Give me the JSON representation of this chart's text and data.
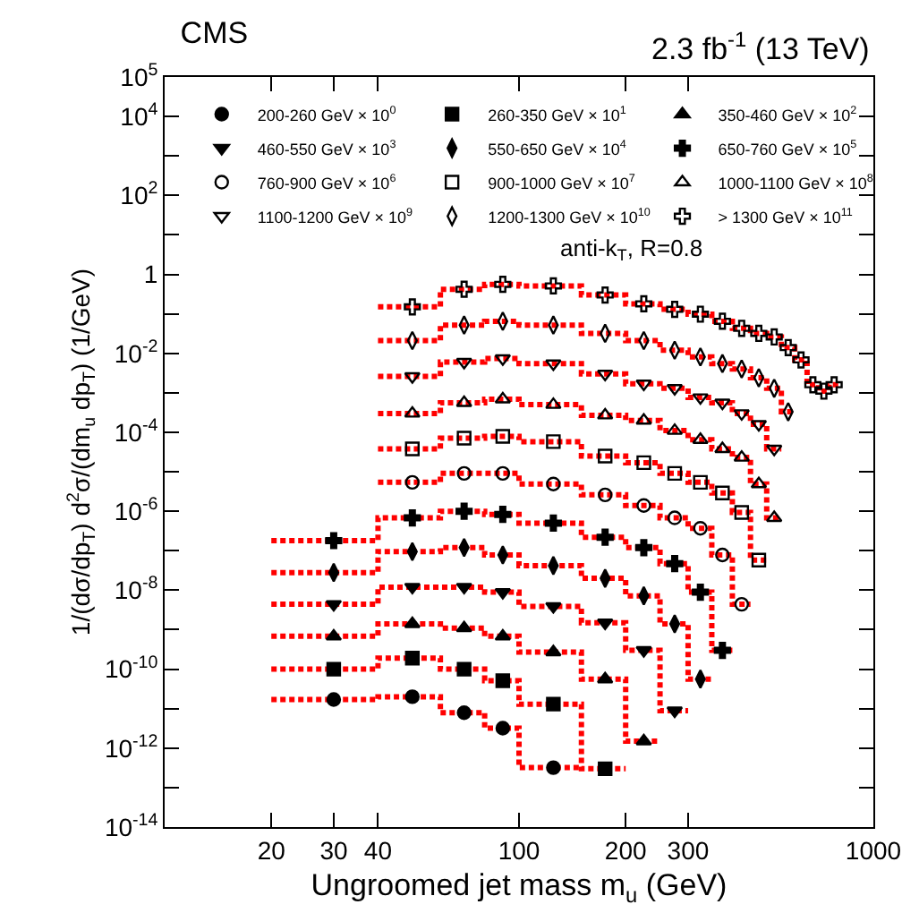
{
  "chart_data": {
    "type": "scatter",
    "title": "CMS",
    "xlabel": "Ungroomed jet mass m$_{u}$ (GeV)",
    "ylabel": "1/(dσ/dp$_{T}$) d$^{2}$σ/(dm$_{u}$ dp$_{T}$) (1/GeV)",
    "annotations": [
      "2.3 fb$^{-1}$ (13 TeV)",
      "anti-k$_{T}$, R=0.8"
    ],
    "log": "xy",
    "legend": "top",
    "line_style": "dotted",
    "xlim": [
      10,
      1000
    ],
    "xticks": [
      20,
      30,
      40,
      100,
      200,
      300,
      1000
    ],
    "ylim": [
      1e-14,
      100000.0
    ],
    "yticks": [
      {
        "value": 100000.0,
        "label": "10$^{5}$"
      },
      {
        "value": 10000.0,
        "label": "10$^{4}$"
      },
      {
        "value": 1000.0,
        "label": null
      },
      {
        "value": 100,
        "label": "10$^{2}$"
      },
      {
        "value": 10,
        "label": null
      },
      {
        "value": 1,
        "label": "1"
      },
      {
        "value": 0.1,
        "label": null
      },
      {
        "value": 0.01,
        "label": "10$^{-2}$"
      },
      {
        "value": 0.001,
        "label": null
      },
      {
        "value": 0.0001,
        "label": "10$^{-4}$"
      },
      {
        "value": 1e-05,
        "label": null
      },
      {
        "value": 1e-06,
        "label": "10$^{-6}$"
      },
      {
        "value": 1e-07,
        "label": null
      },
      {
        "value": 1e-08,
        "label": "10$^{-8}$"
      },
      {
        "value": 1e-09,
        "label": null
      },
      {
        "value": 1e-10,
        "label": "10$^{-10}$"
      },
      {
        "value": 1e-11,
        "label": null
      },
      {
        "value": 1e-12,
        "label": "10$^{-12}$"
      },
      {
        "value": 1e-13,
        "label": null
      },
      {
        "value": 1e-14,
        "label": "10$^{-14}$"
      }
    ],
    "series": [
      {
        "name": "200-260 GeV × 10$^{0}$",
        "marker": "circle",
        "color": "#000000",
        "x": [
          30,
          50,
          70,
          90,
          125
        ],
        "values": [
          1.7e-11,
          2e-11,
          7.9e-12,
          3.2e-12,
          3.2e-13
        ]
      },
      {
        "name": "260-350 GeV × 10$^{1}$",
        "marker": "square",
        "color": "#000000",
        "x": [
          30,
          50,
          70,
          90,
          125,
          175
        ],
        "values": [
          1e-10,
          1.9e-10,
          1e-10,
          5.1e-11,
          1.3e-11,
          3e-13
        ]
      },
      {
        "name": "350-460 GeV × 10$^{2}$",
        "marker": "triangle",
        "color": "#000000",
        "x": [
          30,
          50,
          70,
          90,
          125,
          175,
          225
        ],
        "values": [
          6.8e-10,
          1.4e-09,
          1.1e-09,
          6.8e-10,
          2.7e-10,
          5.6e-11,
          1.5e-12
        ]
      },
      {
        "name": "460-550 GeV × 10$^{3}$",
        "marker": "triangle-down",
        "color": "#000000",
        "x": [
          30,
          50,
          70,
          90,
          125,
          175,
          225,
          275
        ],
        "values": [
          4.4e-09,
          1.2e-08,
          1.2e-08,
          8.9e-09,
          3.9e-09,
          1.5e-09,
          3e-10,
          8.9e-12
        ]
      },
      {
        "name": "550-650 GeV × 10$^{4}$",
        "marker": "diamond",
        "color": "#000000",
        "x": [
          30,
          50,
          70,
          90,
          125,
          175,
          225,
          275,
          325
        ],
        "values": [
          2.8e-08,
          9.5e-08,
          1.2e-07,
          7.8e-08,
          4.2e-08,
          2e-08,
          7.2e-09,
          1.4e-09,
          5.6e-11
        ]
      },
      {
        "name": "650-760 GeV × 10$^{5}$",
        "marker": "cross",
        "color": "#000000",
        "x": [
          30,
          50,
          70,
          90,
          125,
          175,
          225,
          275,
          325,
          375
        ],
        "values": [
          1.8e-07,
          6.8e-07,
          1e-06,
          8.3e-07,
          5e-07,
          2.2e-07,
          1.2e-07,
          4.7e-08,
          8.9e-09,
          3e-10
        ]
      },
      {
        "name": "760-900 GeV × 10$^{6}$",
        "marker": "circle-open",
        "color": "#000000",
        "x": [
          50,
          70,
          90,
          125,
          175,
          225,
          275,
          325,
          375,
          425
        ],
        "values": [
          5.4e-06,
          9.1e-06,
          9.1e-06,
          4.9e-06,
          2.6e-06,
          1.4e-06,
          6.8e-07,
          3.7e-07,
          7.8e-08,
          4.4e-09
        ]
      },
      {
        "name": "900-1000 GeV × 10$^{7}$",
        "marker": "square-open",
        "color": "#000000",
        "x": [
          50,
          70,
          90,
          125,
          175,
          225,
          275,
          325,
          375,
          425,
          475
        ],
        "values": [
          3.8e-05,
          7.1e-05,
          7.9e-05,
          5.8e-05,
          2.5e-05,
          1.7e-05,
          9.1e-06,
          5.4e-06,
          2.9e-06,
          9.3e-07,
          5.8e-08
        ]
      },
      {
        "name": "1000-1100 GeV × 10$^{8}$",
        "marker": "triangle-open",
        "color": "#000000",
        "x": [
          50,
          70,
          90,
          125,
          175,
          225,
          275,
          325,
          375,
          425,
          475,
          525
        ],
        "values": [
          0.0003,
          0.00056,
          0.00069,
          0.0005,
          0.00027,
          0.0002,
          0.00011,
          6.5e-05,
          3.8e-05,
          2.3e-05,
          4.9e-06,
          6.8e-07
        ]
      },
      {
        "name": "1100-1200 GeV × 10$^{9}$",
        "marker": "triangle-down-open",
        "color": "#000000",
        "x": [
          50,
          70,
          90,
          125,
          175,
          225,
          275,
          325,
          375,
          425,
          475,
          525
        ],
        "values": [
          0.0026,
          0.006,
          0.0074,
          0.0055,
          0.003,
          0.0017,
          0.0013,
          0.00076,
          0.00056,
          0.0003,
          0.00016,
          3.8e-05
        ]
      },
      {
        "name": "1200-1300 GeV × 10$^{10}$",
        "marker": "diamond-open",
        "color": "#000000",
        "x": [
          50,
          70,
          90,
          125,
          175,
          225,
          275,
          325,
          375,
          425,
          475,
          525,
          575
        ],
        "values": [
          0.021,
          0.052,
          0.065,
          0.052,
          0.032,
          0.021,
          0.012,
          0.0081,
          0.0055,
          0.004,
          0.0024,
          0.0013,
          0.00033
        ]
      },
      {
        "name": "> 1300 GeV × 10$^{11}$",
        "marker": "cross-open",
        "color": "#000000",
        "x": [
          50,
          70,
          90,
          125,
          175,
          225,
          275,
          325,
          375,
          425,
          475,
          525,
          575,
          625,
          675,
          725,
          775
        ],
        "values": [
          0.15,
          0.42,
          0.56,
          0.51,
          0.3,
          0.18,
          0.13,
          0.098,
          0.065,
          0.043,
          0.032,
          0.026,
          0.014,
          0.0068,
          0.0016,
          0.0011,
          0.0016
        ]
      },
      {
        "type": "step",
        "color": "#ff0000",
        "x": [
          20,
          40,
          60,
          80,
          100,
          150
        ],
        "values": [
          1.7e-11,
          2e-11,
          7.9e-12,
          3.2e-12,
          3.2e-13,
          3.2e-13
        ]
      },
      {
        "type": "step",
        "color": "#ff0000",
        "x": [
          20,
          40,
          60,
          80,
          100,
          150,
          200
        ],
        "values": [
          1e-10,
          1.9e-10,
          1e-10,
          5.1e-11,
          1.3e-11,
          3e-13,
          3e-13
        ]
      },
      {
        "type": "step",
        "color": "#ff0000",
        "x": [
          20,
          40,
          60,
          80,
          100,
          150,
          200,
          250
        ],
        "values": [
          6.8e-10,
          1.4e-09,
          1.1e-09,
          6.8e-10,
          2.7e-10,
          5.6e-11,
          1.5e-12,
          1.5e-12
        ]
      },
      {
        "type": "step",
        "color": "#ff0000",
        "x": [
          20,
          40,
          60,
          80,
          100,
          150,
          200,
          250,
          300
        ],
        "values": [
          4.4e-09,
          1.2e-08,
          1.2e-08,
          8.9e-09,
          3.9e-09,
          1.5e-09,
          3e-10,
          8.9e-12,
          8.9e-12
        ]
      },
      {
        "type": "step",
        "color": "#ff0000",
        "x": [
          20,
          40,
          60,
          80,
          100,
          150,
          200,
          250,
          300,
          350
        ],
        "values": [
          2.8e-08,
          9.5e-08,
          1.2e-07,
          7.8e-08,
          4.2e-08,
          2e-08,
          7.2e-09,
          1.4e-09,
          5.6e-11,
          5.6e-11
        ]
      },
      {
        "type": "step",
        "color": "#ff0000",
        "x": [
          20,
          40,
          60,
          80,
          100,
          150,
          200,
          250,
          300,
          350,
          400
        ],
        "values": [
          1.8e-07,
          6.8e-07,
          1e-06,
          8.3e-07,
          5e-07,
          2.2e-07,
          1.2e-07,
          4.7e-08,
          8.9e-09,
          3e-10,
          3e-10
        ]
      },
      {
        "type": "step",
        "color": "#ff0000",
        "x": [
          40,
          60,
          80,
          100,
          150,
          200,
          250,
          300,
          350,
          400,
          450
        ],
        "values": [
          5.4e-06,
          9.1e-06,
          9.1e-06,
          4.9e-06,
          2.6e-06,
          1.4e-06,
          6.8e-07,
          3.7e-07,
          7.8e-08,
          4.4e-09,
          4.4e-09
        ]
      },
      {
        "type": "step",
        "color": "#ff0000",
        "x": [
          40,
          60,
          80,
          100,
          150,
          200,
          250,
          300,
          350,
          400,
          450,
          500
        ],
        "values": [
          3.8e-05,
          7.1e-05,
          7.9e-05,
          5.8e-05,
          2.5e-05,
          1.7e-05,
          9.1e-06,
          5.4e-06,
          2.9e-06,
          9.3e-07,
          5.8e-08,
          5.8e-08
        ]
      },
      {
        "type": "step",
        "color": "#ff0000",
        "x": [
          40,
          60,
          80,
          100,
          150,
          200,
          250,
          300,
          350,
          400,
          450,
          500,
          550
        ],
        "values": [
          0.0003,
          0.00056,
          0.00069,
          0.0005,
          0.00027,
          0.0002,
          0.00011,
          6.5e-05,
          3.8e-05,
          2.3e-05,
          4.9e-06,
          6.8e-07,
          6.8e-07
        ]
      },
      {
        "type": "step",
        "color": "#ff0000",
        "x": [
          40,
          60,
          80,
          100,
          150,
          200,
          250,
          300,
          350,
          400,
          450,
          500,
          550
        ],
        "values": [
          0.0026,
          0.006,
          0.0074,
          0.0055,
          0.003,
          0.0017,
          0.0013,
          0.00076,
          0.00056,
          0.0003,
          0.00016,
          3.8e-05,
          3.8e-05
        ]
      },
      {
        "type": "step",
        "color": "#ff0000",
        "x": [
          40,
          60,
          80,
          100,
          150,
          200,
          250,
          300,
          350,
          400,
          450,
          500,
          550,
          600
        ],
        "values": [
          0.021,
          0.052,
          0.065,
          0.052,
          0.032,
          0.021,
          0.012,
          0.0081,
          0.0055,
          0.004,
          0.0024,
          0.0013,
          0.00033,
          0.00033
        ]
      },
      {
        "type": "step",
        "color": "#ff0000",
        "x": [
          40,
          60,
          80,
          100,
          150,
          200,
          250,
          300,
          350,
          400,
          450,
          500,
          550,
          600,
          650,
          700,
          750,
          800
        ],
        "values": [
          0.15,
          0.42,
          0.56,
          0.51,
          0.3,
          0.18,
          0.13,
          0.098,
          0.065,
          0.043,
          0.032,
          0.026,
          0.014,
          0.0068,
          0.0016,
          0.0011,
          0.0016,
          0.0016
        ]
      }
    ]
  }
}
